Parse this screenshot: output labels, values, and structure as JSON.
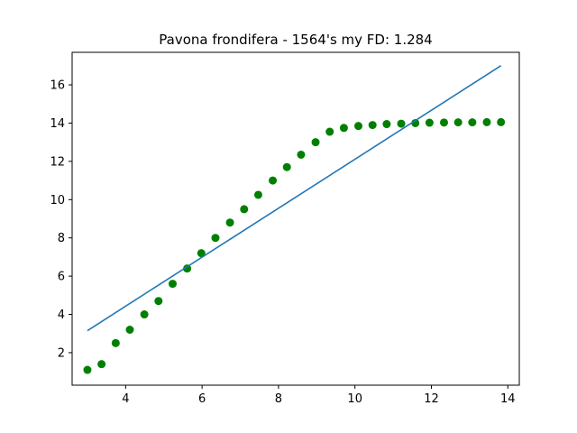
{
  "chart_data": {
    "type": "scatter",
    "title": "Pavona frondifera - 1564's my FD: 1.284",
    "xlabel": "",
    "ylabel": "",
    "xlim": [
      2.6,
      14.3
    ],
    "ylim": [
      0.3,
      17.7
    ],
    "x_ticks": [
      4,
      6,
      8,
      10,
      12,
      14
    ],
    "y_ticks": [
      2,
      4,
      6,
      8,
      10,
      12,
      14,
      16
    ],
    "grid": false,
    "series": [
      {
        "type": "scatter",
        "color": "#008000",
        "points": [
          [
            3.0,
            1.1
          ],
          [
            3.37,
            1.4
          ],
          [
            3.74,
            2.5
          ],
          [
            4.11,
            3.2
          ],
          [
            4.49,
            4.0
          ],
          [
            4.86,
            4.7
          ],
          [
            5.23,
            5.6
          ],
          [
            5.61,
            6.4
          ],
          [
            5.98,
            7.2
          ],
          [
            6.35,
            8.0
          ],
          [
            6.73,
            8.8
          ],
          [
            7.1,
            9.5
          ],
          [
            7.47,
            10.25
          ],
          [
            7.85,
            11.0
          ],
          [
            8.22,
            11.7
          ],
          [
            8.59,
            12.35
          ],
          [
            8.97,
            13.0
          ],
          [
            9.34,
            13.55
          ],
          [
            9.71,
            13.75
          ],
          [
            10.09,
            13.85
          ],
          [
            10.46,
            13.9
          ],
          [
            10.83,
            13.95
          ],
          [
            11.21,
            13.97
          ],
          [
            11.58,
            14.0
          ],
          [
            11.95,
            14.02
          ],
          [
            12.33,
            14.03
          ],
          [
            12.7,
            14.04
          ],
          [
            13.07,
            14.04
          ],
          [
            13.45,
            14.05
          ],
          [
            13.82,
            14.05
          ]
        ]
      },
      {
        "type": "line",
        "color": "#1f77b4",
        "points": [
          [
            3.0,
            3.15
          ],
          [
            13.82,
            17.0
          ]
        ]
      }
    ]
  }
}
